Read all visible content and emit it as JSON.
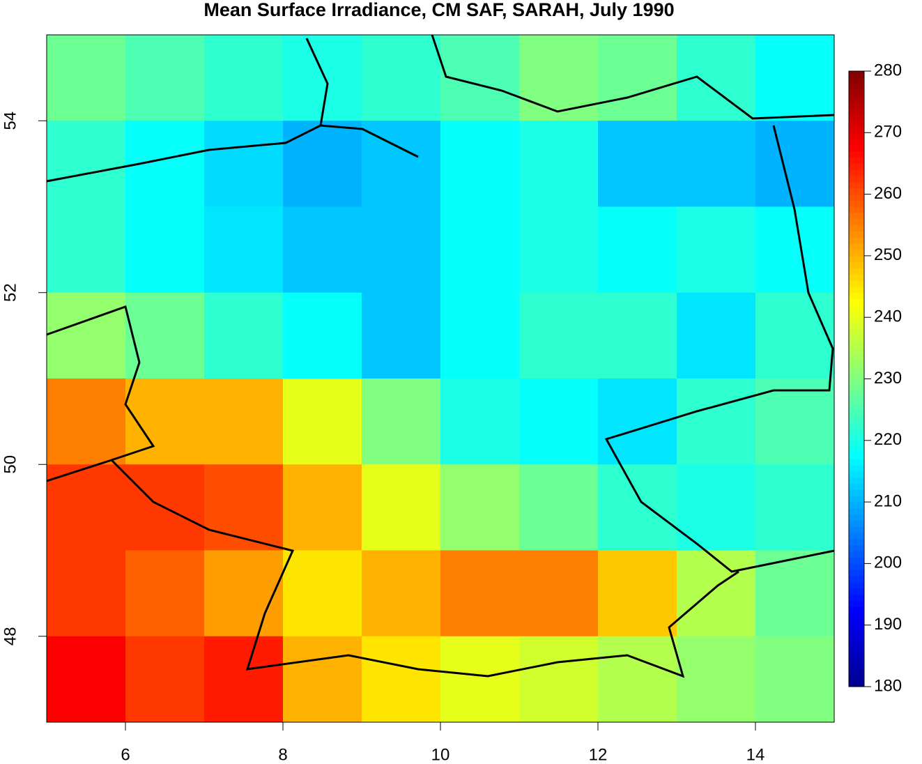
{
  "chart_data": {
    "type": "heatmap",
    "title": "Mean Surface Irradiance, CM SAF, SARAH, July 1990",
    "xlim": [
      5,
      15
    ],
    "ylim": [
      47,
      55
    ],
    "xticks": [
      6,
      8,
      10,
      12,
      14
    ],
    "yticks": [
      48,
      50,
      52,
      54
    ],
    "clim": [
      180,
      280
    ],
    "cticks": [
      180,
      190,
      200,
      210,
      220,
      230,
      240,
      250,
      260,
      270,
      280
    ],
    "colors": [
      "#00008f",
      "#0000ff",
      "#0080ff",
      "#00ffff",
      "#80ff80",
      "#ffff00",
      "#ff8000",
      "#ff0000",
      "#800000"
    ],
    "z": [
      [
        228,
        225,
        222,
        220,
        222,
        225,
        230,
        228,
        222,
        218
      ],
      [
        222,
        218,
        214,
        210,
        212,
        218,
        220,
        212,
        212,
        210
      ],
      [
        222,
        218,
        215,
        212,
        212,
        218,
        220,
        218,
        220,
        218
      ],
      [
        232,
        228,
        222,
        218,
        212,
        218,
        222,
        222,
        215,
        222
      ],
      [
        255,
        250,
        250,
        240,
        230,
        220,
        218,
        215,
        222,
        225
      ],
      [
        262,
        262,
        260,
        250,
        240,
        232,
        228,
        222,
        220,
        222
      ],
      [
        262,
        258,
        252,
        245,
        250,
        255,
        255,
        248,
        235,
        228
      ],
      [
        268,
        262,
        265,
        250,
        245,
        240,
        238,
        235,
        232,
        230
      ]
    ]
  }
}
